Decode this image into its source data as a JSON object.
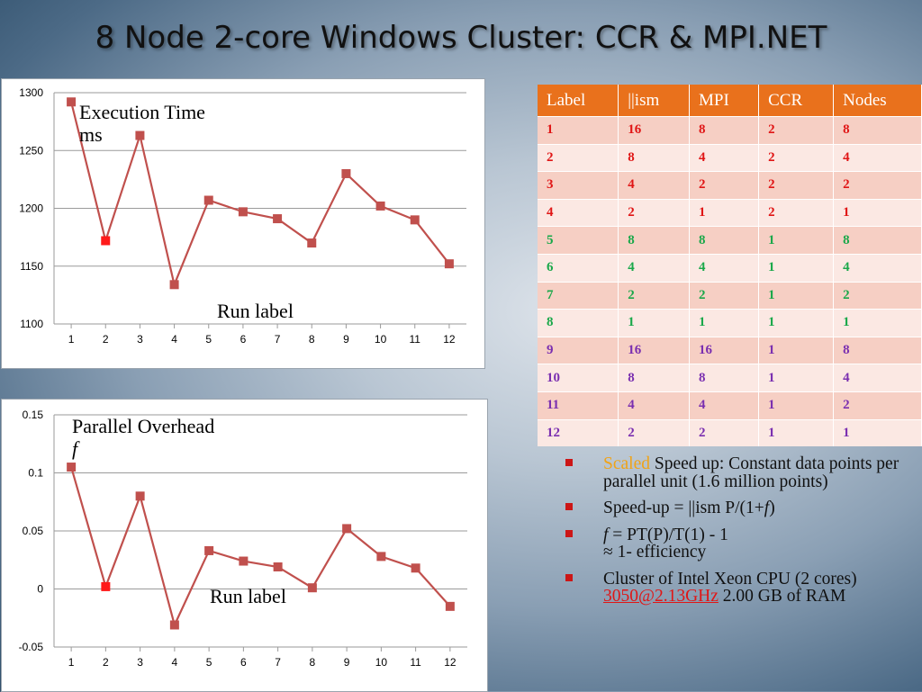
{
  "slide": {
    "title": "8 Node 2-core Windows Cluster: CCR & MPI.NET"
  },
  "colors": {
    "line": "#c0504d",
    "marker": "#c0504d",
    "highlight": "#ff1a1a",
    "table_header": "#e9711c"
  },
  "chart_data": [
    {
      "type": "line",
      "annotation_line1": "Execution Time",
      "annotation_line2": "ms",
      "annotation_xlabel": "Run label",
      "x": [
        1,
        2,
        3,
        4,
        5,
        6,
        7,
        8,
        9,
        10,
        11,
        12
      ],
      "ticks_y": [
        "1100",
        "1150",
        "1200",
        "1250",
        "1300"
      ],
      "ylim": [
        1100,
        1300
      ],
      "grid": true,
      "series": [
        {
          "values": [
            1292,
            1172,
            1263,
            1134,
            1207,
            1197,
            1191,
            1170,
            1230,
            1202,
            1190,
            1152
          ]
        }
      ],
      "highlight_index": 1
    },
    {
      "type": "line",
      "annotation_line1": "Parallel Overhead",
      "annotation_line2": "f",
      "annotation_xlabel": "Run label",
      "x": [
        1,
        2,
        3,
        4,
        5,
        6,
        7,
        8,
        9,
        10,
        11,
        12
      ],
      "ticks_y": [
        "-0.05",
        "0",
        "0.05",
        "0.1",
        "0.15"
      ],
      "ylim": [
        -0.05,
        0.15
      ],
      "grid": true,
      "series": [
        {
          "values": [
            0.105,
            0.002,
            0.08,
            -0.031,
            0.033,
            0.024,
            0.019,
            0.001,
            0.052,
            0.028,
            0.018,
            -0.015
          ]
        }
      ],
      "highlight_index": 1
    }
  ],
  "table": {
    "headers": [
      "Label",
      "||ism",
      "MPI",
      "CCR",
      "Nodes"
    ],
    "rows": [
      [
        "1",
        "16",
        "8",
        "2",
        "8"
      ],
      [
        "2",
        "8",
        "4",
        "2",
        "4"
      ],
      [
        "3",
        "4",
        "2",
        "2",
        "2"
      ],
      [
        "4",
        "2",
        "1",
        "2",
        "1"
      ],
      [
        "5",
        "8",
        "8",
        "1",
        "8"
      ],
      [
        "6",
        "4",
        "4",
        "1",
        "4"
      ],
      [
        "7",
        "2",
        "2",
        "1",
        "2"
      ],
      [
        "8",
        "1",
        "1",
        "1",
        "1"
      ],
      [
        "9",
        "16",
        "16",
        "1",
        "8"
      ],
      [
        "10",
        "8",
        "8",
        "1",
        "4"
      ],
      [
        "11",
        "4",
        "4",
        "1",
        "2"
      ],
      [
        "12",
        "2",
        "2",
        "1",
        "1"
      ]
    ],
    "row_colors": [
      "red",
      "red",
      "red",
      "red",
      "green",
      "green",
      "green",
      "green",
      "purple",
      "purple",
      "purple",
      "purple"
    ]
  },
  "bullets": {
    "b1_scaled": "Scaled",
    "b1_rest": " Speed up: Constant data points per parallel unit (1.6 million points)",
    "b2_a": "Speed-up = ||ism P/(1+",
    "b2_f": "f",
    "b2_b": ")",
    "b3_f": "f",
    "b3_a": " = PT(P)/T(1)  - 1",
    "b3_b": "≈ 1- efficiency",
    "b4_a": "Cluster of Intel Xeon CPU (2 cores) ",
    "b4_link": "3050@2.13GHz",
    "b4_b": " 2.00 GB of RAM"
  }
}
